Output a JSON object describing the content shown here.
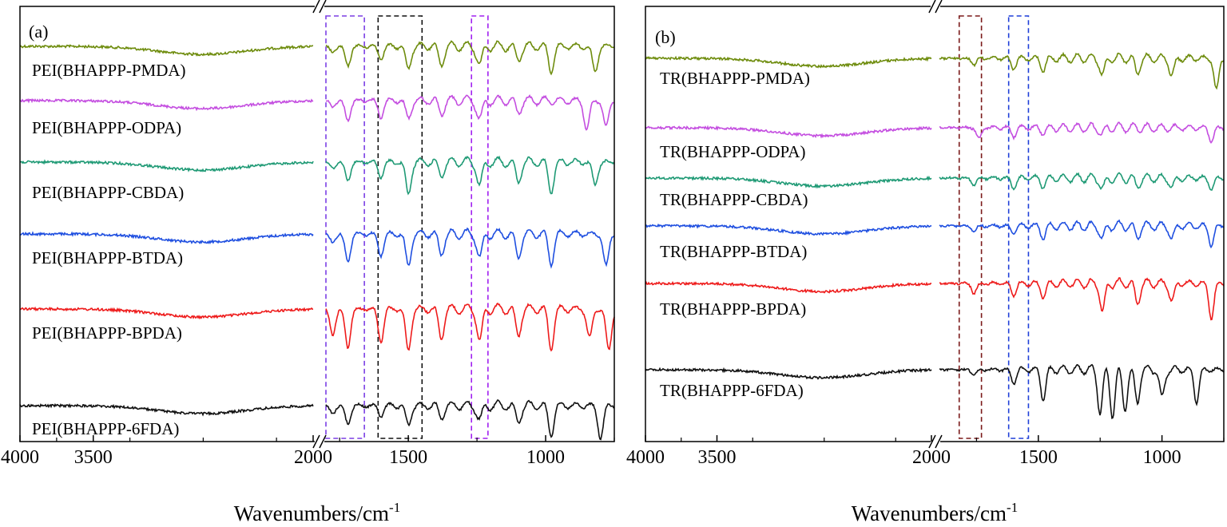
{
  "chart_data": [
    {
      "type": "line",
      "panel_label": "(a)",
      "xlabel": "Wavenumbers/cm",
      "xlabel_superscript": "-1",
      "x_axis": "reversed, broken between 2000 and ~1800 cm-1",
      "x_segments": [
        [
          4000,
          2000
        ],
        [
          1800,
          750
        ]
      ],
      "xticks": [
        4000,
        3500,
        2000,
        1500,
        1000
      ],
      "ylabel": "",
      "y_ticks_shown": false,
      "series": [
        {
          "name": "PEI(BHAPPP-PMDA)",
          "color": "#6e8c0d",
          "peaks": [
            [
              1775,
              0.18
            ],
            [
              1720,
              0.6
            ],
            [
              1600,
              0.35
            ],
            [
              1500,
              0.7
            ],
            [
              1380,
              0.55
            ],
            [
              1240,
              0.6
            ],
            [
              1100,
              0.4
            ],
            [
              980,
              0.75
            ],
            [
              820,
              0.8
            ]
          ]
        },
        {
          "name": "PEI(BHAPPP-ODPA)",
          "color": "#c44ee0",
          "peaks": [
            [
              1775,
              0.18
            ],
            [
              1720,
              0.6
            ],
            [
              1600,
              0.5
            ],
            [
              1500,
              0.55
            ],
            [
              1380,
              0.4
            ],
            [
              1240,
              0.6
            ],
            [
              1100,
              0.35
            ],
            [
              850,
              0.9
            ],
            [
              780,
              0.8
            ]
          ]
        },
        {
          "name": "PEI(BHAPPP-CBDA)",
          "color": "#1f9a75",
          "peaks": [
            [
              1775,
              0.18
            ],
            [
              1720,
              0.55
            ],
            [
              1600,
              0.45
            ],
            [
              1500,
              1.0
            ],
            [
              1380,
              0.4
            ],
            [
              1240,
              0.75
            ],
            [
              1100,
              0.6
            ],
            [
              980,
              0.9
            ],
            [
              820,
              0.7
            ]
          ]
        },
        {
          "name": "PEI(BHAPPP-BTDA)",
          "color": "#1f4fe0",
          "peaks": [
            [
              1775,
              0.25
            ],
            [
              1720,
              0.85
            ],
            [
              1600,
              0.65
            ],
            [
              1500,
              1.0
            ],
            [
              1380,
              0.6
            ],
            [
              1240,
              0.75
            ],
            [
              1100,
              0.7
            ],
            [
              980,
              0.9
            ],
            [
              780,
              1.0
            ]
          ]
        },
        {
          "name": "PEI(BHAPPP-BPDA)",
          "color": "#ee1b1b",
          "peaks": [
            [
              1775,
              0.8
            ],
            [
              1720,
              1.2
            ],
            [
              1600,
              1.0
            ],
            [
              1500,
              1.3
            ],
            [
              1380,
              0.9
            ],
            [
              1240,
              1.0
            ],
            [
              1100,
              0.8
            ],
            [
              980,
              1.2
            ],
            [
              840,
              0.9
            ],
            [
              770,
              1.3
            ]
          ]
        },
        {
          "name": "PEI(BHAPPP-6FDA)",
          "color": "#111111",
          "peaks": [
            [
              1775,
              0.25
            ],
            [
              1720,
              0.55
            ],
            [
              1600,
              0.3
            ],
            [
              1500,
              0.6
            ],
            [
              1380,
              0.35
            ],
            [
              1240,
              0.45
            ],
            [
              1100,
              0.5
            ],
            [
              980,
              0.9
            ],
            [
              800,
              1.0
            ]
          ]
        }
      ],
      "highlight_boxes": [
        {
          "x_range": [
            1800,
            1660
          ],
          "color": "#7b3fe4"
        },
        {
          "x_range": [
            1610,
            1450
          ],
          "color": "#111111"
        },
        {
          "x_range": [
            1270,
            1210
          ],
          "color": "#a020f0"
        }
      ]
    },
    {
      "type": "line",
      "panel_label": "(b)",
      "xlabel": "Wavenumbers/cm",
      "xlabel_superscript": "-1",
      "x_axis": "reversed, broken between 2000 and ~1900 cm-1",
      "x_segments": [
        [
          4000,
          2000
        ],
        [
          1900,
          750
        ]
      ],
      "xticks": [
        4000,
        3500,
        2000,
        1500,
        1000
      ],
      "ylabel": "",
      "y_ticks_shown": false,
      "series": [
        {
          "name": "TR(BHAPPP-PMDA)",
          "color": "#6e8c0d",
          "peaks": [
            [
              1760,
              0.2
            ],
            [
              1600,
              0.3
            ],
            [
              1480,
              0.35
            ],
            [
              1240,
              0.55
            ],
            [
              1100,
              0.45
            ],
            [
              960,
              0.55
            ],
            [
              780,
              1.0
            ]
          ]
        },
        {
          "name": "TR(BHAPPP-ODPA)",
          "color": "#c44ee0",
          "peaks": [
            [
              1740,
              0.35
            ],
            [
              1600,
              0.25
            ],
            [
              1480,
              0.15
            ],
            [
              1240,
              0.2
            ],
            [
              800,
              0.4
            ]
          ]
        },
        {
          "name": "TR(BHAPPP-CBDA)",
          "color": "#1f9a75",
          "peaks": [
            [
              1760,
              0.2
            ],
            [
              1600,
              0.3
            ],
            [
              1480,
              0.25
            ],
            [
              1240,
              0.35
            ],
            [
              1100,
              0.25
            ],
            [
              960,
              0.3
            ],
            [
              800,
              0.35
            ]
          ]
        },
        {
          "name": "TR(BHAPPP-BTDA)",
          "color": "#1f4fe0",
          "peaks": [
            [
              1760,
              0.15
            ],
            [
              1600,
              0.2
            ],
            [
              1480,
              0.35
            ],
            [
              1240,
              0.4
            ],
            [
              1100,
              0.35
            ],
            [
              960,
              0.4
            ],
            [
              800,
              0.6
            ]
          ]
        },
        {
          "name": "TR(BHAPPP-BPDA)",
          "color": "#ee1b1b",
          "peaks": [
            [
              1760,
              0.3
            ],
            [
              1600,
              0.35
            ],
            [
              1480,
              0.4
            ],
            [
              1240,
              0.9
            ],
            [
              1100,
              0.6
            ],
            [
              960,
              0.55
            ],
            [
              800,
              1.1
            ]
          ]
        },
        {
          "name": "TR(BHAPPP-6FDA)",
          "color": "#111111",
          "peaks": [
            [
              1760,
              0.15
            ],
            [
              1600,
              0.4
            ],
            [
              1480,
              0.9
            ],
            [
              1250,
              1.3
            ],
            [
              1200,
              1.4
            ],
            [
              1150,
              1.2
            ],
            [
              1100,
              1.0
            ],
            [
              1000,
              0.9
            ],
            [
              860,
              1.0
            ]
          ]
        }
      ],
      "highlight_boxes": [
        {
          "x_range": [
            1820,
            1730
          ],
          "color": "#7b1a1a"
        },
        {
          "x_range": [
            1620,
            1540
          ],
          "color": "#1f3fd8"
        }
      ]
    }
  ]
}
